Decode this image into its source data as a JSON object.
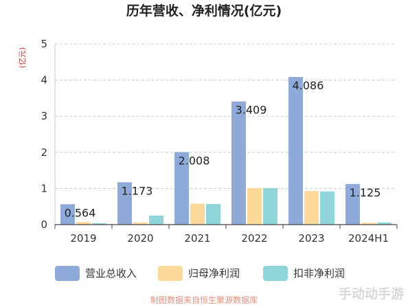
{
  "chart_data": {
    "type": "bar",
    "title": "历年营收、净利情况(亿元)",
    "ylabel": "(亿元)",
    "xlabel": "",
    "categories": [
      "2019",
      "2020",
      "2021",
      "2022",
      "2023",
      "2024H1"
    ],
    "series": [
      {
        "name": "营业总收入",
        "color": "#8eaad9",
        "values": [
          0.564,
          1.173,
          2.008,
          3.409,
          4.086,
          1.125
        ]
      },
      {
        "name": "归母净利润",
        "color": "#fdd999",
        "values": [
          0.07,
          0.06,
          0.58,
          1.01,
          0.93,
          0.05
        ]
      },
      {
        "name": "扣非净利润",
        "color": "#8ed6d9",
        "values": [
          0.04,
          0.25,
          0.57,
          1.01,
          0.92,
          0.06
        ]
      }
    ],
    "data_labels": [
      "0.564",
      "1.173",
      "2.008",
      "3.409",
      "4.086",
      "1.125"
    ],
    "yticks": [
      "0",
      "1",
      "2",
      "3",
      "4",
      "5"
    ],
    "ylim": [
      0,
      5
    ],
    "grid": true,
    "legend_position": "bottom"
  },
  "source": "制图数据来自恒生聚源数据库",
  "watermark": "手动动手游"
}
